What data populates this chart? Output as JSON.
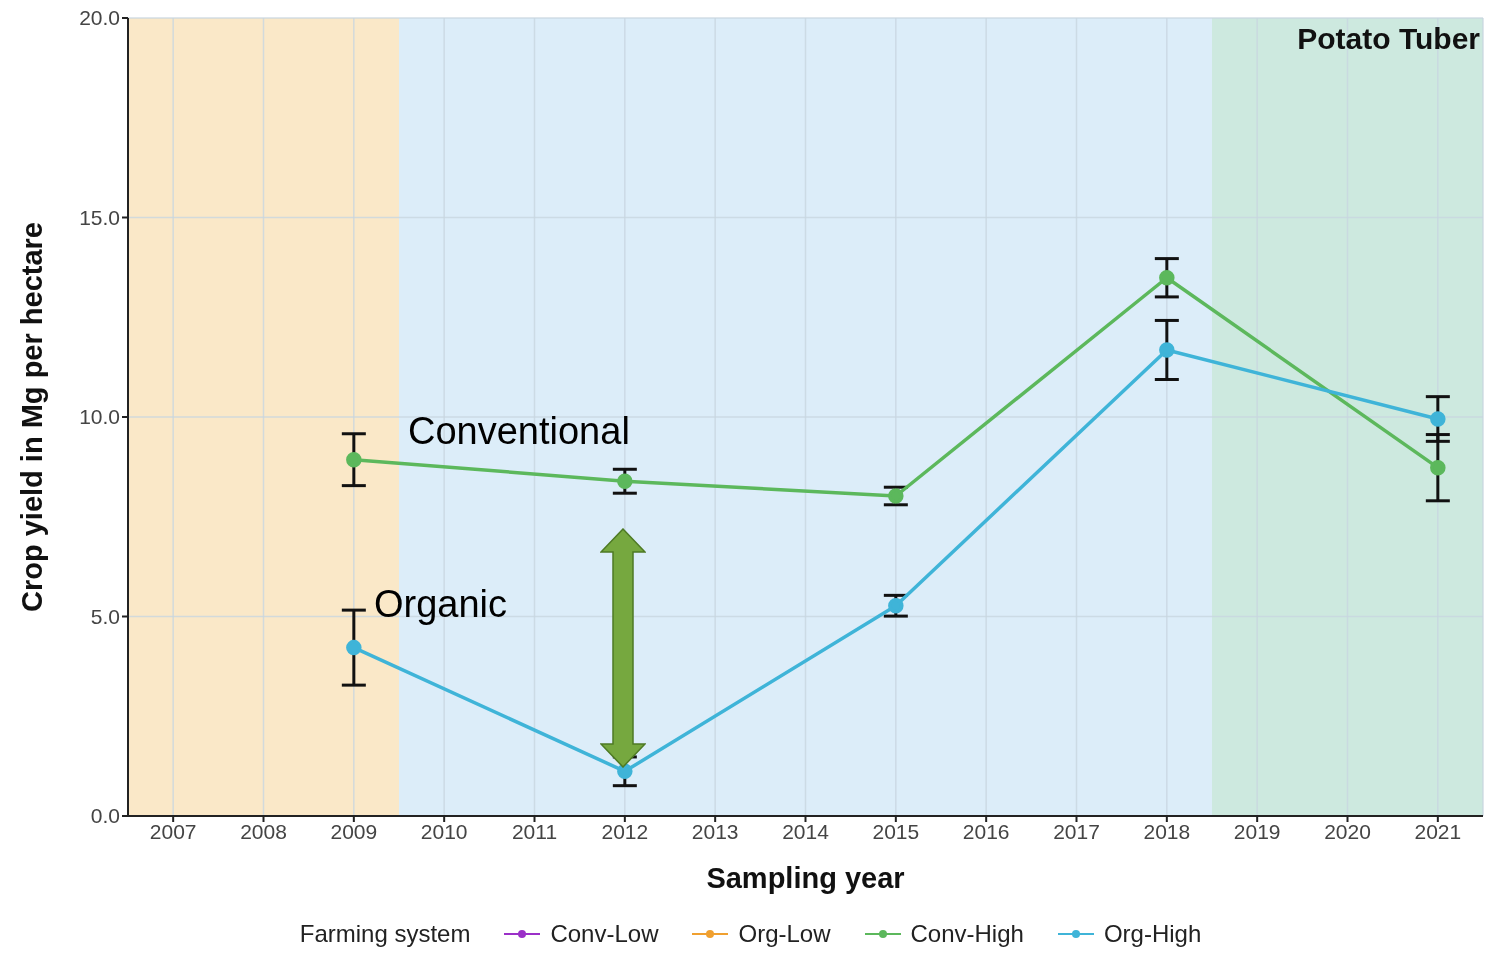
{
  "chart_data": {
    "type": "line",
    "title": "Potato Tuber",
    "xlabel": "Sampling year",
    "ylabel": "Crop yield in Mg per hectare",
    "legend_title": "Farming system",
    "x": [
      2009,
      2012,
      2015,
      2018,
      2021
    ],
    "xlim": [
      2006.5,
      2021.5
    ],
    "xticks": [
      2007,
      2008,
      2009,
      2010,
      2011,
      2012,
      2013,
      2014,
      2015,
      2016,
      2017,
      2018,
      2019,
      2020,
      2021
    ],
    "ylim": [
      0,
      20
    ],
    "yticks": [
      {
        "value": 0,
        "label": "0.0"
      },
      {
        "value": 5,
        "label": "5.0"
      },
      {
        "value": 10,
        "label": "10.0"
      },
      {
        "value": 15,
        "label": "15.0"
      },
      {
        "value": 20,
        "label": "20.0"
      }
    ],
    "series": [
      {
        "name": "Conv-Low",
        "color": "#9b30c8",
        "values": [
          null,
          null,
          null,
          null,
          null
        ]
      },
      {
        "name": "Org-Low",
        "color": "#f0a030",
        "values": [
          null,
          null,
          null,
          null,
          null
        ]
      },
      {
        "name": "Conv-High",
        "color": "#5cb85c",
        "values": [
          8.93,
          8.39,
          8.02,
          13.49,
          8.73
        ],
        "errors": [
          0.65,
          0.3,
          0.22,
          0.48,
          0.83
        ]
      },
      {
        "name": "Org-High",
        "color": "#3fb4d8",
        "values": [
          4.22,
          1.12,
          5.27,
          11.68,
          9.95
        ],
        "errors": [
          0.94,
          0.36,
          0.26,
          0.74,
          0.56
        ]
      }
    ],
    "bands": [
      {
        "axis": "x",
        "from": 2006.5,
        "to": 2009.5,
        "color": "#fae8c8"
      },
      {
        "axis": "x",
        "from": 2009.5,
        "to": 2018.5,
        "color": "#dcedf9"
      },
      {
        "axis": "x",
        "from": 2018.5,
        "to": 2021.5,
        "color": "#cde9df"
      }
    ],
    "annotations": [
      "Conventional",
      "Organic"
    ],
    "marker": "circle",
    "line_style": "solid",
    "grid": true,
    "legend": "bottom"
  }
}
